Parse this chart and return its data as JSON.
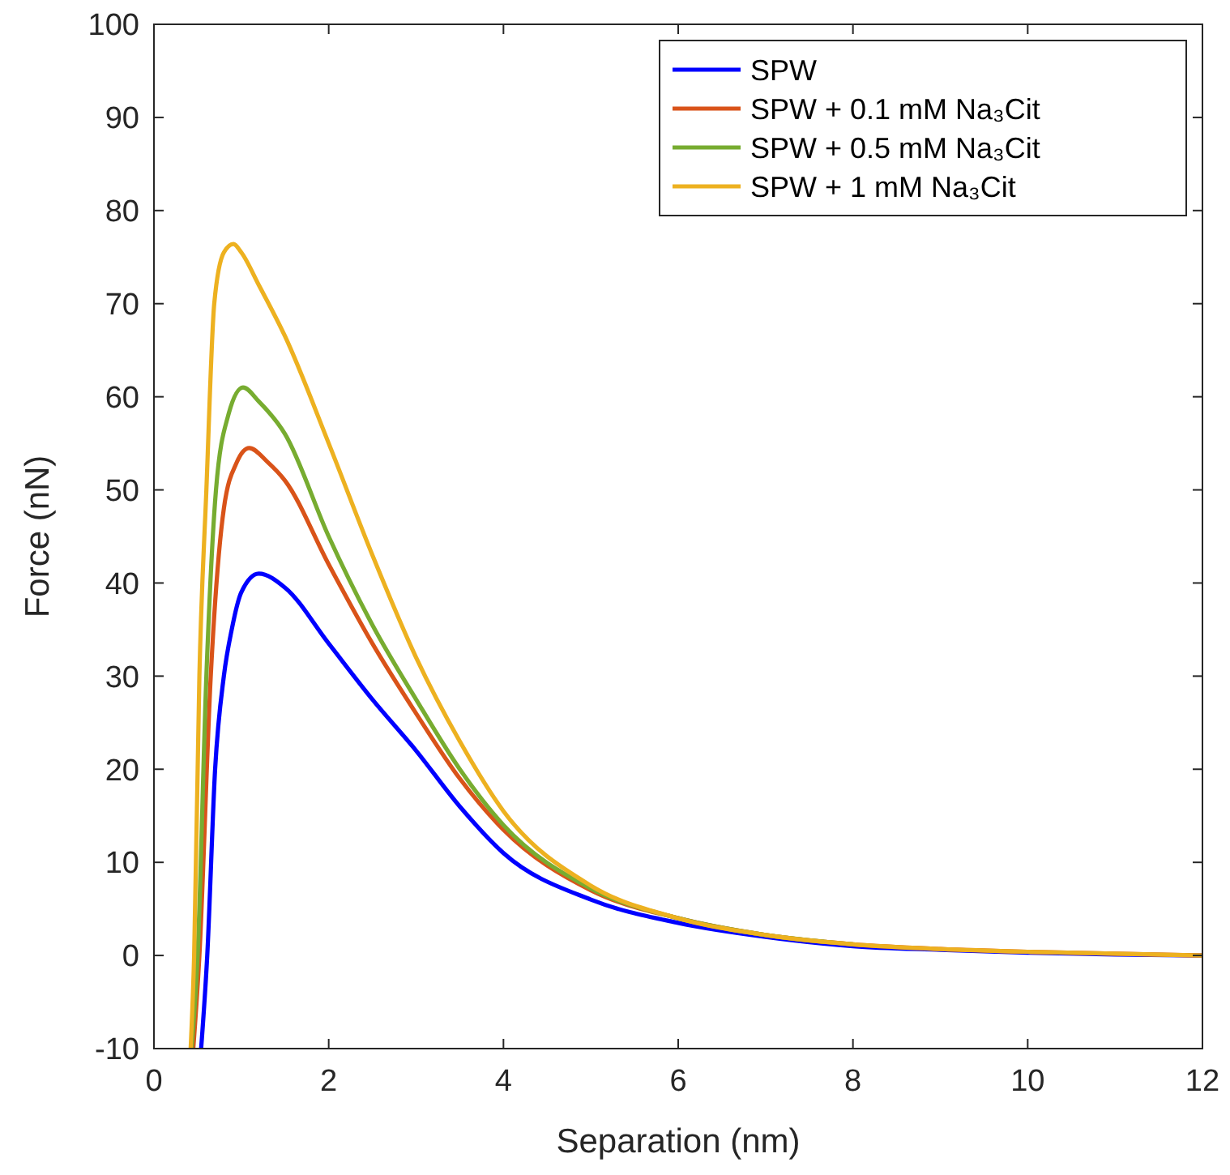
{
  "chart_data": {
    "type": "line",
    "xlabel": "Separation (nm)",
    "ylabel": "Force (nN)",
    "xlim": [
      0,
      12
    ],
    "ylim": [
      -10,
      100
    ],
    "xticks": [
      0,
      2,
      4,
      6,
      8,
      10,
      12
    ],
    "yticks": [
      -10,
      0,
      10,
      20,
      30,
      40,
      50,
      60,
      70,
      80,
      90,
      100
    ],
    "legend": "top right",
    "grid": false,
    "marker": "none",
    "line_style": "solid",
    "series": [
      {
        "name": "SPW",
        "color": "#0000ff",
        "x": [
          0.54,
          0.61,
          0.7,
          0.8,
          0.89,
          1.0,
          1.2,
          1.5,
          2,
          2.5,
          3,
          3.5,
          4,
          5,
          6,
          7,
          8,
          9,
          10,
          11,
          12
        ],
        "values": [
          -10,
          0,
          20,
          30,
          35,
          39,
          41,
          39.5,
          33.5,
          27.5,
          22,
          16,
          11,
          6,
          3.5,
          2,
          1,
          0.6,
          0.3,
          0.1,
          0
        ]
      },
      {
        "name": "SPW + 0.1 mM Na₃Cit",
        "color": "#d95319",
        "x": [
          0.45,
          0.52,
          0.65,
          0.8,
          0.95,
          1.09,
          1.3,
          1.5,
          2,
          2.5,
          3,
          3.5,
          4,
          5,
          6,
          7,
          8,
          9,
          10,
          11,
          12
        ],
        "values": [
          -10,
          0,
          30,
          48,
          53,
          54.5,
          53,
          51,
          42,
          33.5,
          26,
          19,
          13.5,
          7,
          4,
          2.2,
          1.2,
          0.7,
          0.4,
          0.2,
          0
        ]
      },
      {
        "name": "SPW + 0.5 mM Na₃Cit",
        "color": "#77ac30",
        "x": [
          0.43,
          0.5,
          0.6,
          0.71,
          0.85,
          1.02,
          1.2,
          1.5,
          2,
          2.5,
          3,
          3.5,
          4,
          5,
          6,
          7,
          8
        ],
        "values": [
          -10,
          0,
          30,
          50,
          58,
          61,
          59.5,
          56,
          45,
          35.5,
          27.5,
          20,
          14,
          7.2,
          4,
          2.2,
          1.2
        ]
      },
      {
        "name": "SPW + 1 mM Na₃Cit",
        "color": "#edb120",
        "x": [
          0.42,
          0.46,
          0.52,
          0.6,
          0.69,
          0.8,
          0.91,
          1.0,
          1.2,
          1.5,
          2,
          2.5,
          3,
          3.5,
          4,
          5,
          6,
          7,
          8,
          9,
          10,
          11,
          12
        ],
        "values": [
          -10,
          0,
          30,
          50,
          70,
          75.5,
          76.4,
          75.5,
          72,
          66.5,
          55,
          43,
          32,
          23,
          15.5,
          7.5,
          4,
          2.2,
          1.2,
          0.7,
          0.4,
          0.2,
          0
        ]
      }
    ]
  }
}
